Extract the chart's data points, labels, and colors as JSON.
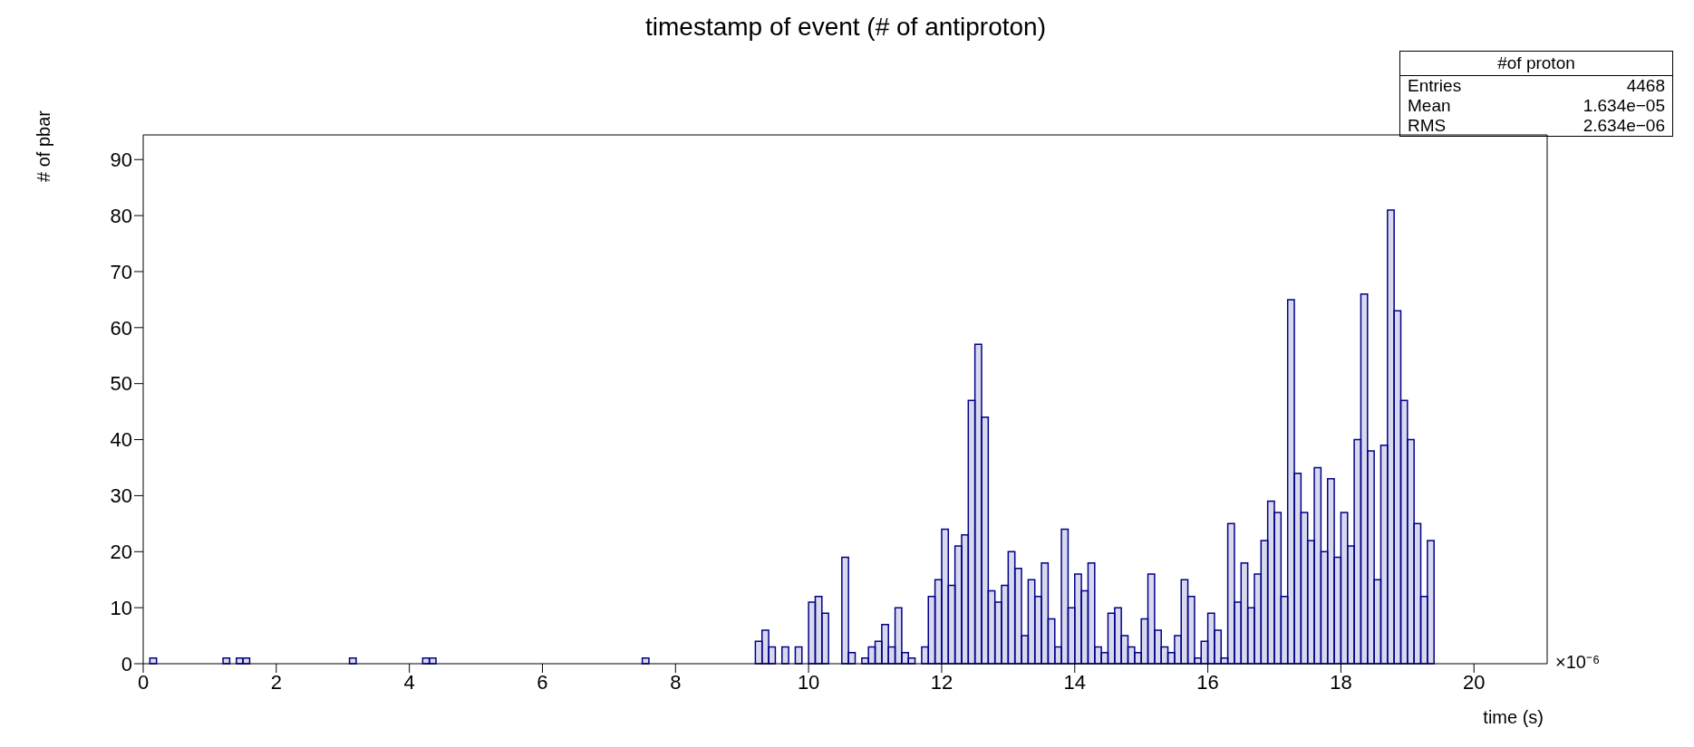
{
  "chart_data": {
    "type": "histogram",
    "title": "timestamp of event (# of antiproton)",
    "xlabel": "time (s)",
    "ylabel": "# of pbar",
    "color": "#00008b",
    "bins": [
      0,
      0.1,
      0.2,
      0.3,
      0.4,
      0.5,
      0.6,
      0.7,
      0.8,
      0.9,
      1,
      1.1,
      1.2,
      1.3,
      1.4,
      1.5,
      1.6,
      1.7,
      1.8,
      1.9,
      2,
      2.1,
      2.2,
      2.3,
      2.4,
      2.5,
      2.6,
      2.7,
      2.8,
      2.9,
      3,
      3.1,
      3.2,
      3.3,
      3.4,
      3.5,
      3.6,
      3.7,
      3.8,
      3.9,
      4,
      4.1,
      4.2,
      4.3,
      4.4,
      4.5,
      4.6,
      4.7,
      4.8,
      4.9,
      5,
      5.1,
      5.2,
      5.3,
      5.4,
      5.5,
      5.6,
      5.7,
      5.8,
      5.9,
      6,
      6.1,
      6.2,
      6.3,
      6.4,
      6.5,
      6.6,
      6.7,
      6.8,
      6.9,
      7,
      7.1,
      7.2,
      7.3,
      7.4,
      7.5,
      7.6,
      7.7,
      7.8,
      7.9,
      8,
      8.1,
      8.2,
      8.3,
      8.4,
      8.5,
      8.6,
      8.7,
      8.8,
      8.9,
      9,
      9.1,
      9.2,
      9.3,
      9.4,
      9.5,
      9.6,
      9.7,
      9.8,
      9.9,
      10,
      10.1,
      10.2,
      10.3,
      10.4,
      10.5,
      10.6,
      10.7,
      10.8,
      10.9,
      11,
      11.1,
      11.2,
      11.3,
      11.4,
      11.5,
      11.6,
      11.7,
      11.8,
      11.9,
      12,
      12.1,
      12.2,
      12.3,
      12.4,
      12.5,
      12.6,
      12.7,
      12.8,
      12.9,
      13,
      13.1,
      13.2,
      13.3,
      13.4,
      13.5,
      13.6,
      13.7,
      13.8,
      13.9,
      14,
      14.1,
      14.2,
      14.3,
      14.4,
      14.5,
      14.6,
      14.7,
      14.8,
      14.9,
      15,
      15.1,
      15.2,
      15.3,
      15.4,
      15.5,
      15.6,
      15.7,
      15.8,
      15.9,
      16,
      16.1,
      16.2,
      16.3,
      16.4,
      16.5,
      16.6,
      16.7,
      16.8,
      16.9,
      17,
      17.1,
      17.2,
      17.3,
      17.4,
      17.5,
      17.6,
      17.7,
      17.8,
      17.9,
      18,
      18.1,
      18.2,
      18.3,
      18.4,
      18.5,
      18.6,
      18.7,
      18.8,
      18.9,
      19,
      19.1,
      19.2,
      19.3,
      19.4
    ],
    "values": [
      0,
      1,
      0,
      0,
      0,
      0,
      0,
      0,
      0,
      0,
      0,
      0,
      1,
      0,
      1,
      1,
      0,
      0,
      0,
      0,
      0,
      0,
      0,
      0,
      0,
      0,
      0,
      0,
      0,
      0,
      0,
      1,
      0,
      0,
      0,
      0,
      0,
      0,
      0,
      0,
      0,
      0,
      1,
      1,
      0,
      0,
      0,
      0,
      0,
      0,
      0,
      0,
      0,
      0,
      0,
      0,
      0,
      0,
      0,
      0,
      0,
      0,
      0,
      0,
      0,
      0,
      0,
      0,
      0,
      0,
      0,
      0,
      0,
      0,
      0,
      1,
      0,
      0,
      0,
      0,
      0,
      0,
      0,
      0,
      0,
      0,
      0,
      0,
      0,
      0,
      0,
      0,
      4,
      6,
      3,
      0,
      3,
      0,
      3,
      0,
      11,
      12,
      9,
      0,
      0,
      19,
      2,
      0,
      1,
      3,
      4,
      7,
      3,
      10,
      2,
      1,
      0,
      3,
      12,
      15,
      24,
      14,
      21,
      23,
      47,
      57,
      44,
      13,
      11,
      14,
      20,
      17,
      5,
      15,
      12,
      18,
      8,
      3,
      24,
      10,
      16,
      13,
      18,
      3,
      2,
      9,
      10,
      5,
      3,
      2,
      8,
      16,
      6,
      3,
      2,
      5,
      15,
      12,
      1,
      4,
      9,
      6,
      1,
      25,
      11,
      18,
      10,
      16,
      22,
      29,
      27,
      12,
      65,
      34,
      27,
      22,
      35,
      20,
      33,
      19,
      27,
      21,
      40,
      66,
      38,
      15,
      39,
      81,
      63,
      47,
      40,
      25,
      12,
      22
    ],
    "xlim": [
      0,
      21.1
    ],
    "xticks": [
      0,
      2,
      4,
      6,
      8,
      10,
      12,
      14,
      16,
      18,
      20
    ],
    "ylim": [
      0,
      94.4
    ],
    "yticks": [
      0,
      10,
      20,
      30,
      40,
      50,
      60,
      70,
      80,
      90
    ],
    "annotations": [
      "#of proton",
      "Entries",
      "4468",
      "Mean",
      "1.634e−05",
      "RMS",
      "2.634e−06",
      "×10⁻⁶"
    ]
  }
}
